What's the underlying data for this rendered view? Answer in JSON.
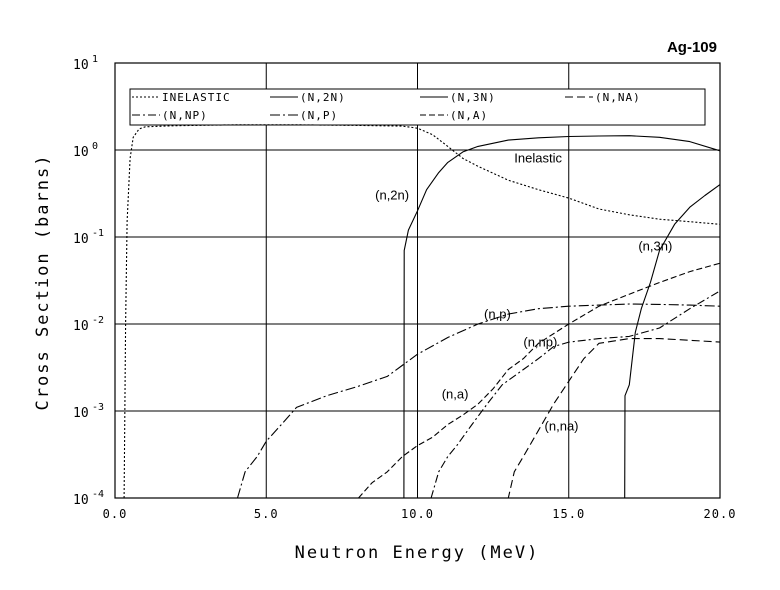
{
  "chart_data": {
    "type": "line",
    "title": "Ag-109",
    "xlabel": "Neutron Energy (MeV)",
    "ylabel": "Cross Section (barns)",
    "xlim": [
      0,
      20
    ],
    "ylim": [
      0.0001,
      10
    ],
    "yscale": "log",
    "grid": true,
    "legend_position": "top",
    "x_ticks": [
      {
        "value": 0,
        "label": "0.0"
      },
      {
        "value": 5,
        "label": "5.0"
      },
      {
        "value": 10,
        "label": "10.0"
      },
      {
        "value": 15,
        "label": "15.0"
      },
      {
        "value": 20,
        "label": "20.0"
      }
    ],
    "y_ticks": [
      {
        "value": 0.0001,
        "base": "10",
        "exp": "-4"
      },
      {
        "value": 0.001,
        "base": "10",
        "exp": "-3"
      },
      {
        "value": 0.01,
        "base": "10",
        "exp": "-2"
      },
      {
        "value": 0.1,
        "base": "10",
        "exp": "-1"
      },
      {
        "value": 1,
        "base": "10",
        "exp": "0"
      },
      {
        "value": 10,
        "base": "10",
        "exp": "1"
      }
    ],
    "series": [
      {
        "name": "INELASTIC",
        "dash": "2,2",
        "annotation": "Inelastic",
        "ann_x": 13.2,
        "ann_y": 0.72,
        "points": [
          [
            0.3,
            0.0001
          ],
          [
            0.35,
            0.01
          ],
          [
            0.4,
            0.15
          ],
          [
            0.5,
            0.8
          ],
          [
            0.6,
            1.4
          ],
          [
            0.8,
            1.75
          ],
          [
            1.0,
            1.85
          ],
          [
            2,
            1.9
          ],
          [
            4,
            1.95
          ],
          [
            6,
            1.95
          ],
          [
            8,
            1.92
          ],
          [
            9.5,
            1.88
          ],
          [
            10,
            1.78
          ],
          [
            10.5,
            1.5
          ],
          [
            11,
            1.1
          ],
          [
            11.5,
            0.8
          ],
          [
            12,
            0.65
          ],
          [
            13,
            0.45
          ],
          [
            14,
            0.35
          ],
          [
            15,
            0.28
          ],
          [
            16,
            0.21
          ],
          [
            17,
            0.18
          ],
          [
            18,
            0.16
          ],
          [
            19,
            0.15
          ],
          [
            20,
            0.14
          ]
        ]
      },
      {
        "name": "(N,2N)",
        "dash": "",
        "annotation": "(n,2n)",
        "ann_x": 8.6,
        "ann_y": 0.27,
        "points": [
          [
            9.55,
            0.0001
          ],
          [
            9.56,
            0.07
          ],
          [
            9.7,
            0.12
          ],
          [
            10,
            0.2
          ],
          [
            10.3,
            0.35
          ],
          [
            10.7,
            0.55
          ],
          [
            11,
            0.72
          ],
          [
            11.5,
            0.95
          ],
          [
            12,
            1.1
          ],
          [
            13,
            1.3
          ],
          [
            14,
            1.38
          ],
          [
            15,
            1.43
          ],
          [
            16,
            1.45
          ],
          [
            17,
            1.46
          ],
          [
            18,
            1.4
          ],
          [
            19,
            1.25
          ],
          [
            20,
            0.98
          ]
        ]
      },
      {
        "name": "(N,3N)",
        "dash": "",
        "annotation": "(n,3n)",
        "ann_x": 17.3,
        "ann_y": 0.07,
        "points": [
          [
            16.85,
            0.0001
          ],
          [
            16.86,
            0.0015
          ],
          [
            17,
            0.002
          ],
          [
            17.1,
            0.004
          ],
          [
            17.2,
            0.008
          ],
          [
            17.4,
            0.015
          ],
          [
            17.7,
            0.03
          ],
          [
            18,
            0.07
          ],
          [
            18.5,
            0.14
          ],
          [
            19,
            0.22
          ],
          [
            19.5,
            0.3
          ],
          [
            20,
            0.4
          ]
        ]
      },
      {
        "name": "(N,NA)",
        "dash": "8,4",
        "annotation": "(n,na)",
        "ann_x": 14.2,
        "ann_y": 0.0006,
        "points": [
          [
            12.95,
            0.0001
          ],
          [
            13,
            0.0001
          ],
          [
            13.2,
            0.0002
          ],
          [
            13.5,
            0.0003
          ],
          [
            14,
            0.0006
          ],
          [
            14.5,
            0.0012
          ],
          [
            15,
            0.0022
          ],
          [
            15.5,
            0.004
          ],
          [
            16,
            0.006
          ],
          [
            17,
            0.0068
          ],
          [
            18,
            0.0068
          ],
          [
            19,
            0.0065
          ],
          [
            20,
            0.0062
          ]
        ]
      },
      {
        "name": "(N,NP)",
        "dash": "8,3,2,3",
        "annotation": "(n,np)",
        "ann_x": 13.5,
        "ann_y": 0.0055,
        "points": [
          [
            10.45,
            0.0001
          ],
          [
            10.7,
            0.0002
          ],
          [
            11,
            0.0003
          ],
          [
            11.3,
            0.0004
          ],
          [
            11.8,
            0.0007
          ],
          [
            12.3,
            0.0012
          ],
          [
            12.8,
            0.002
          ],
          [
            13.5,
            0.003
          ],
          [
            14,
            0.004
          ],
          [
            14.5,
            0.0055
          ],
          [
            15,
            0.0062
          ],
          [
            16,
            0.0068
          ],
          [
            17,
            0.0072
          ],
          [
            18,
            0.009
          ],
          [
            19,
            0.015
          ],
          [
            20,
            0.024
          ]
        ]
      },
      {
        "name": "(N,P)",
        "dash": "10,3,2,3",
        "annotation": "(n,p)",
        "ann_x": 12.2,
        "ann_y": 0.0115,
        "points": [
          [
            4.05,
            0.0001
          ],
          [
            4.3,
            0.0002
          ],
          [
            4.7,
            0.0003
          ],
          [
            5,
            0.00045
          ],
          [
            5.5,
            0.0007
          ],
          [
            6,
            0.0011
          ],
          [
            7,
            0.0015
          ],
          [
            8,
            0.0019
          ],
          [
            9,
            0.0025
          ],
          [
            10,
            0.0045
          ],
          [
            11,
            0.007
          ],
          [
            12,
            0.01
          ],
          [
            13,
            0.013
          ],
          [
            14,
            0.015
          ],
          [
            15,
            0.016
          ],
          [
            16,
            0.0165
          ],
          [
            17,
            0.017
          ],
          [
            18,
            0.0168
          ],
          [
            19,
            0.0165
          ],
          [
            20,
            0.016
          ]
        ]
      },
      {
        "name": "(N,A)",
        "dash": "6,3",
        "annotation": "(n,a)",
        "ann_x": 10.8,
        "ann_y": 0.0014,
        "points": [
          [
            8.05,
            0.0001
          ],
          [
            8.5,
            0.00015
          ],
          [
            9,
            0.0002
          ],
          [
            9.5,
            0.0003
          ],
          [
            10,
            0.0004
          ],
          [
            10.5,
            0.0005
          ],
          [
            11,
            0.0007
          ],
          [
            11.5,
            0.0009
          ],
          [
            12,
            0.0012
          ],
          [
            12.5,
            0.0018
          ],
          [
            13,
            0.003
          ],
          [
            13.5,
            0.004
          ],
          [
            14,
            0.006
          ],
          [
            15,
            0.01
          ],
          [
            16,
            0.016
          ],
          [
            17,
            0.022
          ],
          [
            18,
            0.03
          ],
          [
            19,
            0.04
          ],
          [
            20,
            0.05
          ]
        ]
      }
    ]
  }
}
